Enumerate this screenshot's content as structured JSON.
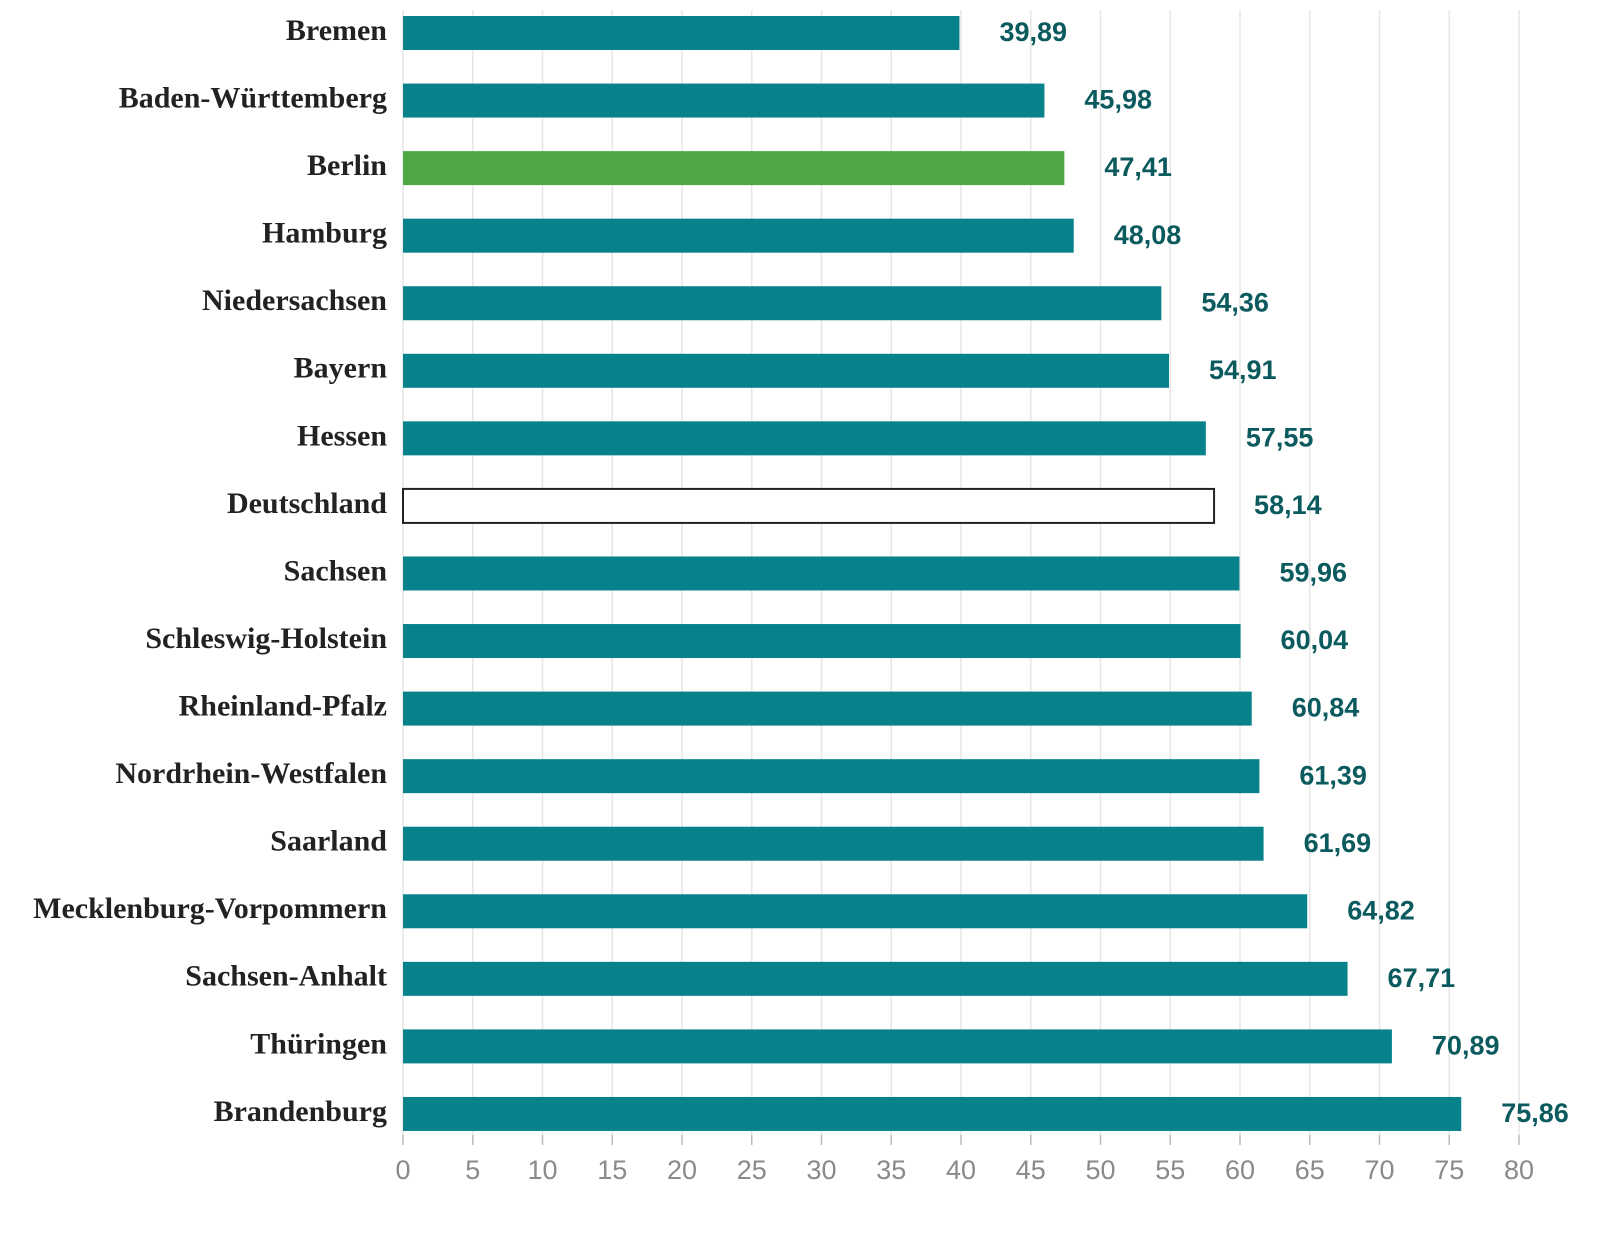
{
  "chart_data": {
    "type": "hbar",
    "categories": [
      "Bremen",
      "Baden-Württemberg",
      "Berlin",
      "Hamburg",
      "Niedersachsen",
      "Bayern",
      "Hessen",
      "Deutschland",
      "Sachsen",
      "Schleswig-Holstein",
      "Rheinland-Pfalz",
      "Nordrhein-Westfalen",
      "Saarland",
      "Mecklenburg-Vorpommern",
      "Sachsen-Anhalt",
      "Thüringen",
      "Brandenburg"
    ],
    "values": [
      39.89,
      45.98,
      47.41,
      48.08,
      54.36,
      54.91,
      57.55,
      58.14,
      59.96,
      60.04,
      60.84,
      61.39,
      61.69,
      64.82,
      67.71,
      70.89,
      75.86
    ],
    "value_labels": [
      "39,89",
      "45,98",
      "47,41",
      "48,08",
      "54,36",
      "54,91",
      "57,55",
      "58,14",
      "59,96",
      "60,04",
      "60,84",
      "61,39",
      "61,69",
      "64,82",
      "67,71",
      "70,89",
      "75,86"
    ],
    "colors": [
      "#08828a",
      "#08828a",
      "#4ea944",
      "#08828a",
      "#08828a",
      "#08828a",
      "#08828a",
      "#ffffff",
      "#08828a",
      "#08828a",
      "#08828a",
      "#08828a",
      "#08828a",
      "#08828a",
      "#08828a",
      "#08828a",
      "#08828a"
    ],
    "xlim": [
      0,
      80
    ],
    "xticks": [
      0,
      5,
      10,
      15,
      20,
      25,
      30,
      35,
      40,
      45,
      50,
      55,
      60,
      65,
      70,
      75,
      80
    ],
    "grid": true
  }
}
